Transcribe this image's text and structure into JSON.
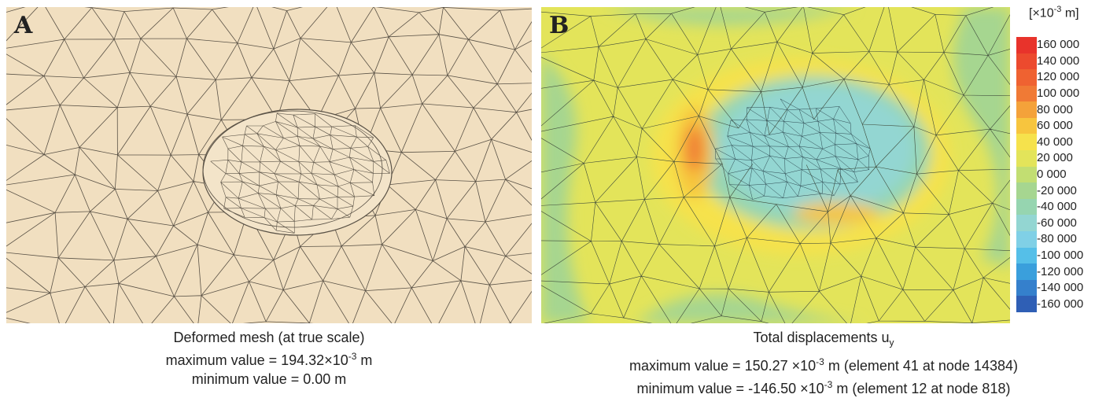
{
  "panel_a": {
    "letter": "A",
    "caption_title": "Deformed mesh (at true scale)",
    "max_prefix": "maximum value = 194.32×10",
    "max_exp": "-3",
    "max_suffix": " m",
    "min_text": "minimum value = 0.00 m",
    "colors": {
      "background": "#f1dfc0",
      "mesh_line": "#5a5246"
    }
  },
  "panel_b": {
    "letter": "B",
    "caption_title": "Total displacements u",
    "caption_sub": "y",
    "max_prefix": "maximum value = 150.27 ×10",
    "max_exp": "-3",
    "max_suffix": " m (element 41 at node 14384)",
    "min_prefix": "minimum value = -146.50 ×10",
    "min_exp": "-3",
    "min_suffix": " m (element 12 at node 818)"
  },
  "legend": {
    "unit_prefix": "[×10",
    "unit_exp": "-3",
    "unit_suffix": " m]",
    "entries": [
      {
        "label": "160 000",
        "color": "#e8332b"
      },
      {
        "label": "140 000",
        "color": "#ec4a2e"
      },
      {
        "label": "120 000",
        "color": "#ef6231"
      },
      {
        "label": "100 000",
        "color": "#f07a35"
      },
      {
        "label": "80 000",
        "color": "#f4a23a"
      },
      {
        "label": "60 000",
        "color": "#f7c53e"
      },
      {
        "label": "40 000",
        "color": "#f6e24c"
      },
      {
        "label": "20 000",
        "color": "#e3e45a"
      },
      {
        "label": "0 000",
        "color": "#c2de72"
      },
      {
        "label": "-20 000",
        "color": "#a6d690"
      },
      {
        "label": "-40 000",
        "color": "#96d5b0"
      },
      {
        "label": "-60 000",
        "color": "#93d6d2"
      },
      {
        "label": "-80 000",
        "color": "#80d0e6"
      },
      {
        "label": "-100 000",
        "color": "#55bfe8"
      },
      {
        "label": "-120 000",
        "color": "#3a9fdc"
      },
      {
        "label": "-140 000",
        "color": "#3580cc"
      },
      {
        "label": "-160 000",
        "color": "#2f5fb5"
      }
    ]
  }
}
